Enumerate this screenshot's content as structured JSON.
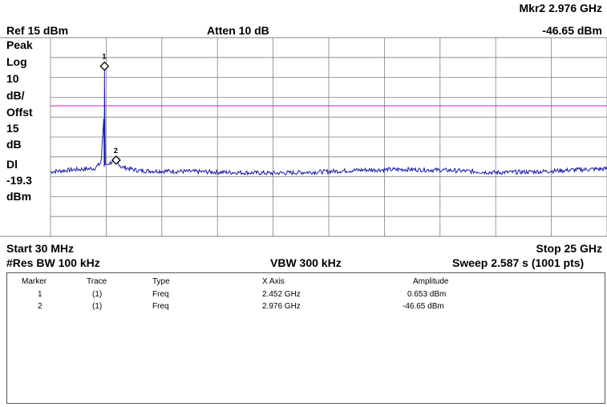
{
  "header": {
    "marker_readout_freq": "Mkr2  2.976 GHz",
    "marker_readout_amp": "-46.65 dBm",
    "ref_level": "Ref 15 dBm",
    "attenuation": "Atten 10 dB"
  },
  "side_labels": [
    "Peak",
    "Log",
    "10",
    "dB/",
    "Offst",
    "15",
    "dB",
    "Dl",
    "-19.3",
    "dBm"
  ],
  "footer": {
    "start": "Start 30 MHz",
    "stop": "Stop 25 GHz",
    "res_bw": "#Res BW 100 kHz",
    "vbw": "VBW 300 kHz",
    "sweep": "Sweep 2.587 s (1001 pts)"
  },
  "marker_table": {
    "columns": [
      "Marker",
      "Trace",
      "Type",
      "X Axis",
      "Amplitude"
    ],
    "rows": [
      [
        "1",
        "(1)",
        "Freq",
        "2.452 GHz",
        "0.653 dBm"
      ],
      [
        "2",
        "(1)",
        "Freq",
        "2.976 GHz",
        "-46.65 dBm"
      ]
    ]
  },
  "colors": {
    "trace": "#1a1aa6",
    "display_line": "#cc33cc",
    "grid": "#808080"
  },
  "chart_data": {
    "type": "line",
    "x_unit": "GHz",
    "y_unit": "dBm",
    "xlim": [
      0.03,
      25
    ],
    "ylim": [
      -85,
      15
    ],
    "grid": true,
    "display_line": -19.3,
    "noise_floor": -52,
    "markers": [
      {
        "label": "1",
        "x": 2.452,
        "y": 0.653
      },
      {
        "label": "2",
        "x": 2.976,
        "y": -46.65
      }
    ],
    "trace_points": [
      [
        0.03,
        -52.5
      ],
      [
        1.0,
        -51.5
      ],
      [
        2.0,
        -50.8
      ],
      [
        2.3,
        -48
      ],
      [
        2.44,
        -22
      ],
      [
        2.452,
        0.653
      ],
      [
        2.47,
        -49
      ],
      [
        2.6,
        -48.5
      ],
      [
        2.976,
        -46.65
      ],
      [
        3.2,
        -50
      ],
      [
        4.0,
        -52
      ],
      [
        6.0,
        -52.3
      ],
      [
        8.0,
        -52.8
      ],
      [
        10.0,
        -53.2
      ],
      [
        12.0,
        -52.6
      ],
      [
        14.0,
        -51.6
      ],
      [
        16.0,
        -51.3
      ],
      [
        18.0,
        -51.8
      ],
      [
        20.0,
        -52.9
      ],
      [
        22.0,
        -52.4
      ],
      [
        24.0,
        -51.3
      ],
      [
        25.0,
        -51.0
      ]
    ]
  }
}
